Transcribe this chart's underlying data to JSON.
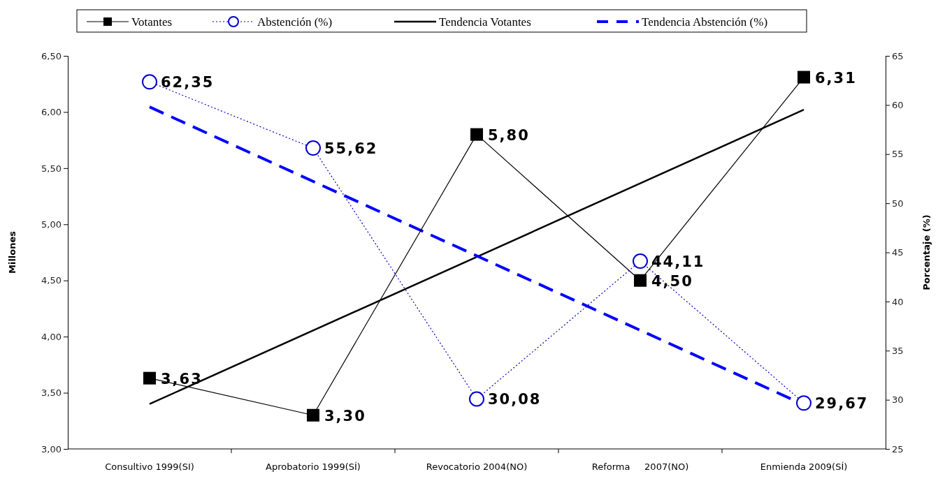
{
  "chart_data": {
    "type": "line",
    "ylabel": "Millones",
    "y2label": "Porcentaje (%)",
    "categories": [
      "Consultivo 1999(SI)",
      "Aprobatorio 1999(SÍ)",
      "Revocatorio 2004(NO)",
      "Reforma     2007(NO)",
      "Enmienda 2009(SÍ)"
    ],
    "ylim": [
      3,
      6.5
    ],
    "yticks": [
      {
        "value": 3,
        "label": "3,00"
      },
      {
        "value": 3.5,
        "label": "3,50"
      },
      {
        "value": 4,
        "label": "4,00"
      },
      {
        "value": 4.5,
        "label": "4,50"
      },
      {
        "value": 5,
        "label": "5,00"
      },
      {
        "value": 5.5,
        "label": "5,50"
      },
      {
        "value": 6,
        "label": "6,00"
      },
      {
        "value": 6.5,
        "label": "6,50"
      }
    ],
    "y2lim": [
      25,
      65
    ],
    "y2ticks": [
      25,
      30,
      35,
      40,
      45,
      50,
      55,
      60,
      65
    ],
    "legend": "top",
    "grid": false,
    "series": [
      {
        "name": "Votantes",
        "color": "#000000",
        "marker": "square",
        "line_style": "solid",
        "values": [
          3.63,
          3.3,
          5.8,
          4.5,
          6.31
        ],
        "value_labels": [
          "3,63",
          "3,30",
          "5,80",
          "4,50",
          "6,31"
        ]
      },
      {
        "name": "Abstención (%)",
        "color": "#0000cc",
        "marker": "circle",
        "line_style": "dotted",
        "axis": "y2",
        "values": [
          62.35,
          55.62,
          30.08,
          44.11,
          29.67
        ],
        "value_labels": [
          "62,35",
          "55,62",
          "30,08",
          "44,11",
          "29,67"
        ]
      },
      {
        "name": "Tendencia Votantes",
        "type": "line",
        "color": "#000000",
        "marker": "none",
        "line_style": "solid",
        "x": [
          "Consultivo 1999(SI)",
          "Enmienda 2009(SÍ)"
        ],
        "values": [
          3.4,
          6.02
        ]
      },
      {
        "name": "Tendencia Abstención (%)",
        "type": "line",
        "color": "#0000ff",
        "marker": "none",
        "line_style": "dashed",
        "axis": "y2",
        "x": [
          "Consultivo 1999(SI)",
          "Enmienda 2009(SÍ)"
        ],
        "values": [
          59.8,
          29.5
        ]
      }
    ]
  }
}
